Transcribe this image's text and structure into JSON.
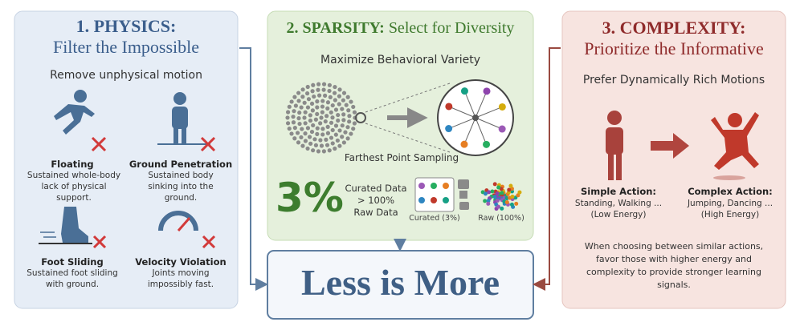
{
  "panels": [
    {
      "number": "1. PHYSICS:",
      "title": "Filter the Impossible",
      "subtitle": "Remove unphysical motion",
      "items": [
        {
          "label": "Floating",
          "description": "Sustained whole-body lack of physical support."
        },
        {
          "label": "Ground Penetration",
          "description": "Sustained body sinking into the ground."
        },
        {
          "label": "Foot Sliding",
          "description": "Sustained foot sliding with ground."
        },
        {
          "label": "Velocity Violation",
          "description": "Joints moving impossibly fast."
        }
      ]
    },
    {
      "number": "2. SPARSITY:",
      "title": "Select for Diversity",
      "subtitle": "Maximize Behavioral Variety",
      "method": "Farthest Point Sampling",
      "stat": "3%",
      "stat_caption": [
        "Curated Data",
        "> 100%",
        "Raw Data"
      ],
      "curated_label": "Curated (3%)",
      "raw_label": "Raw (100%)"
    },
    {
      "number": "3. COMPLEXITY:",
      "title": "Prioritize the Informative",
      "subtitle": "Prefer Dynamically Rich Motions",
      "simple": {
        "label": "Simple Action:",
        "examples": "Standing, Walking ...",
        "energy": "(Low Energy)"
      },
      "complex": {
        "label": "Complex Action:",
        "examples": "Jumping, Dancing ...",
        "energy": "(High Energy)"
      },
      "note": "When choosing between similar actions, favor those with higher energy and complexity to provide stronger learning signals."
    }
  ],
  "conclusion": "Less is More"
}
